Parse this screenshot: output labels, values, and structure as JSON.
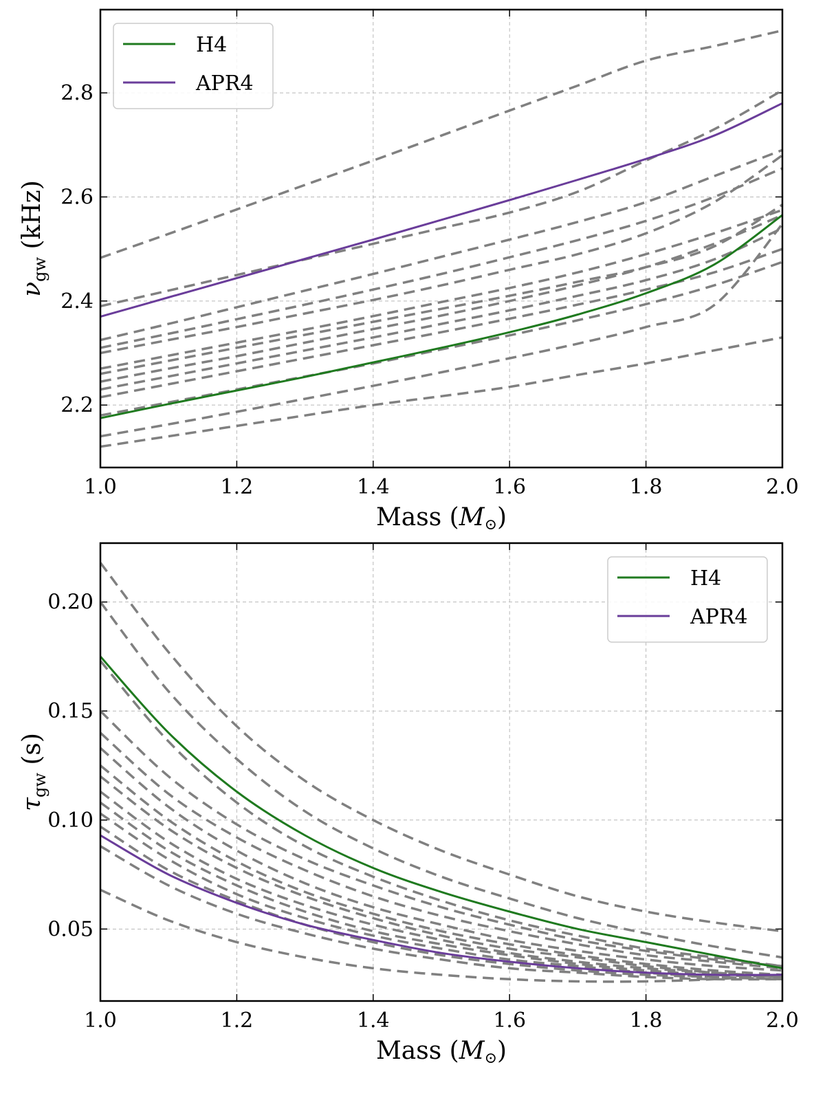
{
  "chart_data": [
    {
      "type": "line",
      "xlabel": "Mass (",
      "xlabel_symbol": "M",
      "xlabel_sub": "⊙",
      "xlabel_end": ")",
      "ylabel_symbol": "ν",
      "ylabel_sub": "gw",
      "ylabel_unit": " (kHz)",
      "xlim": [
        1.0,
        2.0
      ],
      "ylim": [
        2.08,
        2.96
      ],
      "xticks": [
        "1.0",
        "1.2",
        "1.4",
        "1.6",
        "1.8",
        "2.0"
      ],
      "yticks": [
        "2.2",
        "2.4",
        "2.6",
        "2.8"
      ],
      "x": [
        1.0,
        1.1,
        1.2,
        1.3,
        1.4,
        1.5,
        1.6,
        1.7,
        1.8,
        1.9,
        2.0
      ],
      "legend": {
        "location": "top-left",
        "entries": [
          "H4",
          "APR4"
        ]
      },
      "colors": {
        "H4": "#1f7a1f",
        "APR4": "#6a3d9a",
        "other": "#808080"
      },
      "series": [
        {
          "name": "H4",
          "values": [
            2.175,
            2.202,
            2.228,
            2.254,
            2.282,
            2.31,
            2.34,
            2.374,
            2.415,
            2.47,
            2.565
          ]
        },
        {
          "name": "APR4",
          "values": [
            2.37,
            2.407,
            2.444,
            2.481,
            2.518,
            2.556,
            2.594,
            2.633,
            2.673,
            2.718,
            2.78
          ]
        }
      ],
      "other_series": [
        [
          2.483,
          2.529,
          2.576,
          2.623,
          2.67,
          2.718,
          2.766,
          2.814,
          2.862,
          2.89,
          2.92
        ],
        [
          2.39,
          2.42,
          2.45,
          2.48,
          2.51,
          2.54,
          2.57,
          2.61,
          2.67,
          2.73,
          2.805
        ],
        [
          2.325,
          2.356,
          2.388,
          2.42,
          2.452,
          2.485,
          2.518,
          2.552,
          2.59,
          2.64,
          2.69
        ],
        [
          2.31,
          2.337,
          2.365,
          2.393,
          2.422,
          2.452,
          2.484,
          2.517,
          2.554,
          2.6,
          2.655
        ],
        [
          2.3,
          2.325,
          2.35,
          2.376,
          2.402,
          2.43,
          2.46,
          2.49,
          2.53,
          2.59,
          2.68
        ],
        [
          2.27,
          2.295,
          2.32,
          2.345,
          2.371,
          2.398,
          2.425,
          2.455,
          2.49,
          2.53,
          2.575
        ],
        [
          2.26,
          2.285,
          2.31,
          2.335,
          2.36,
          2.385,
          2.41,
          2.437,
          2.465,
          2.505,
          2.585
        ],
        [
          2.245,
          2.27,
          2.294,
          2.32,
          2.346,
          2.372,
          2.4,
          2.43,
          2.465,
          2.51,
          2.565
        ],
        [
          2.23,
          2.255,
          2.28,
          2.305,
          2.33,
          2.356,
          2.382,
          2.41,
          2.44,
          2.48,
          2.54
        ],
        [
          2.215,
          2.24,
          2.265,
          2.29,
          2.315,
          2.34,
          2.366,
          2.393,
          2.422,
          2.455,
          2.5
        ],
        [
          2.18,
          2.205,
          2.23,
          2.255,
          2.28,
          2.307,
          2.334,
          2.363,
          2.394,
          2.43,
          2.475
        ],
        [
          2.14,
          2.163,
          2.187,
          2.212,
          2.237,
          2.263,
          2.29,
          2.318,
          2.35,
          2.392,
          2.548
        ],
        [
          2.12,
          2.14,
          2.16,
          2.18,
          2.2,
          2.217,
          2.235,
          2.258,
          2.28,
          2.305,
          2.33
        ]
      ]
    },
    {
      "type": "line",
      "xlabel": "Mass (",
      "xlabel_symbol": "M",
      "xlabel_sub": "⊙",
      "xlabel_end": ")",
      "ylabel_symbol": "τ",
      "ylabel_sub": "gw",
      "ylabel_unit": " (s)",
      "xlim": [
        1.0,
        2.0
      ],
      "ylim": [
        0.017,
        0.227
      ],
      "xticks": [
        "1.0",
        "1.2",
        "1.4",
        "1.6",
        "1.8",
        "2.0"
      ],
      "yticks": [
        "0.05",
        "0.10",
        "0.15",
        "0.20"
      ],
      "x": [
        1.0,
        1.1,
        1.2,
        1.3,
        1.4,
        1.5,
        1.6,
        1.7,
        1.8,
        1.9,
        2.0
      ],
      "legend": {
        "location": "top-right",
        "entries": [
          "H4",
          "APR4"
        ]
      },
      "colors": {
        "H4": "#1f7a1f",
        "APR4": "#6a3d9a",
        "other": "#808080"
      },
      "series": [
        {
          "name": "H4",
          "values": [
            0.175,
            0.14,
            0.113,
            0.093,
            0.078,
            0.067,
            0.058,
            0.05,
            0.044,
            0.038,
            0.032
          ]
        },
        {
          "name": "APR4",
          "values": [
            0.093,
            0.075,
            0.062,
            0.052,
            0.045,
            0.039,
            0.035,
            0.032,
            0.03,
            0.029,
            0.029
          ]
        }
      ],
      "other_series": [
        [
          0.218,
          0.177,
          0.143,
          0.118,
          0.1,
          0.086,
          0.075,
          0.065,
          0.058,
          0.053,
          0.049
        ],
        [
          0.2,
          0.159,
          0.128,
          0.104,
          0.087,
          0.074,
          0.064,
          0.055,
          0.048,
          0.042,
          0.037
        ],
        [
          0.173,
          0.136,
          0.108,
          0.088,
          0.074,
          0.063,
          0.054,
          0.047,
          0.041,
          0.037,
          0.033
        ],
        [
          0.15,
          0.12,
          0.098,
          0.082,
          0.07,
          0.06,
          0.052,
          0.045,
          0.04,
          0.036,
          0.033
        ],
        [
          0.14,
          0.112,
          0.092,
          0.077,
          0.065,
          0.056,
          0.049,
          0.043,
          0.038,
          0.035,
          0.032
        ],
        [
          0.133,
          0.106,
          0.086,
          0.071,
          0.06,
          0.052,
          0.045,
          0.04,
          0.036,
          0.033,
          0.031
        ],
        [
          0.125,
          0.1,
          0.081,
          0.067,
          0.057,
          0.049,
          0.043,
          0.038,
          0.034,
          0.031,
          0.029
        ],
        [
          0.12,
          0.096,
          0.078,
          0.065,
          0.055,
          0.047,
          0.041,
          0.037,
          0.033,
          0.03,
          0.028
        ],
        [
          0.113,
          0.09,
          0.073,
          0.061,
          0.052,
          0.045,
          0.039,
          0.035,
          0.032,
          0.03,
          0.028
        ],
        [
          0.108,
          0.086,
          0.07,
          0.058,
          0.049,
          0.043,
          0.038,
          0.034,
          0.031,
          0.029,
          0.028
        ],
        [
          0.103,
          0.082,
          0.066,
          0.055,
          0.047,
          0.041,
          0.036,
          0.033,
          0.03,
          0.028,
          0.027
        ],
        [
          0.097,
          0.077,
          0.063,
          0.052,
          0.044,
          0.038,
          0.034,
          0.031,
          0.029,
          0.028,
          0.027
        ],
        [
          0.088,
          0.07,
          0.057,
          0.048,
          0.041,
          0.036,
          0.032,
          0.03,
          0.028,
          0.027,
          0.027
        ],
        [
          0.068,
          0.054,
          0.044,
          0.037,
          0.032,
          0.029,
          0.027,
          0.026,
          0.026,
          0.027,
          0.029
        ]
      ]
    }
  ]
}
